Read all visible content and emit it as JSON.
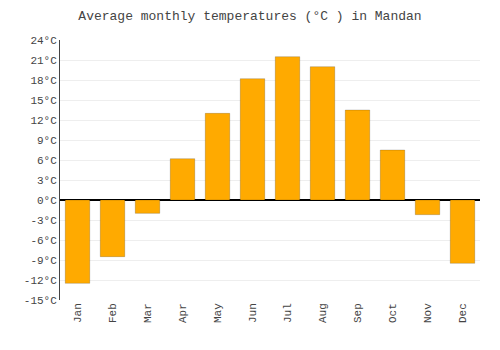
{
  "chart_data": {
    "type": "bar",
    "title": "Average monthly temperatures (°C ) in Mandan",
    "categories": [
      "Jan",
      "Feb",
      "Mar",
      "Apr",
      "May",
      "Jun",
      "Jul",
      "Aug",
      "Sep",
      "Oct",
      "Nov",
      "Dec"
    ],
    "values": [
      -12.5,
      -8.5,
      -2.0,
      6.2,
      13.0,
      18.2,
      21.5,
      20.0,
      13.5,
      7.5,
      -2.2,
      -9.5
    ],
    "color": "#FFAA00",
    "ylim": [
      -15,
      24
    ],
    "yticks": [
      {
        "value": -15,
        "label": "-15°C"
      },
      {
        "value": -12,
        "label": "-12°C"
      },
      {
        "value": -9,
        "label": "-9°C"
      },
      {
        "value": -6,
        "label": "-6°C"
      },
      {
        "value": -3,
        "label": "-3°C"
      },
      {
        "value": 0,
        "label": "0°C"
      },
      {
        "value": 3,
        "label": "3°C"
      },
      {
        "value": 6,
        "label": "6°C"
      },
      {
        "value": 9,
        "label": "9°C"
      },
      {
        "value": 12,
        "label": "12°C"
      },
      {
        "value": 15,
        "label": "15°C"
      },
      {
        "value": 18,
        "label": "18°C"
      },
      {
        "value": 21,
        "label": "21°C"
      },
      {
        "value": 24,
        "label": "24°C"
      }
    ],
    "grid": true
  }
}
